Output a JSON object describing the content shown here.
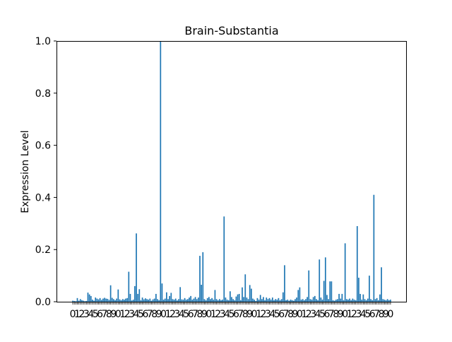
{
  "chart_data": {
    "type": "bar",
    "title": "Brain-Substantia",
    "xlabel": "",
    "ylabel": "Expression Level",
    "ylim": [
      0,
      1.0
    ],
    "yticks": [
      "0.0",
      "0.2",
      "0.4",
      "0.6",
      "0.8",
      "1.0"
    ],
    "grid": false,
    "legend": "none",
    "bar_color": "#1f77b4",
    "x_tick_labels_overlapping": "0123456789",
    "values": [
      0.004,
      0.003,
      0.002,
      0.014,
      0.004,
      0.01,
      0.006,
      0.004,
      0.002,
      0.003,
      0.035,
      0.028,
      0.022,
      0.008,
      0.004,
      0.016,
      0.012,
      0.009,
      0.014,
      0.007,
      0.012,
      0.015,
      0.012,
      0.011,
      0.007,
      0.063,
      0.015,
      0.01,
      0.006,
      0.012,
      0.047,
      0.009,
      0.006,
      0.01,
      0.008,
      0.012,
      0.014,
      0.115,
      0.03,
      0.005,
      0.008,
      0.06,
      0.262,
      0.03,
      0.048,
      0.006,
      0.016,
      0.009,
      0.013,
      0.01,
      0.008,
      0.012,
      0.004,
      0.009,
      0.012,
      0.03,
      0.01,
      0.006,
      1.0,
      0.07,
      0.008,
      0.012,
      0.036,
      0.01,
      0.022,
      0.034,
      0.01,
      0.008,
      0.012,
      0.005,
      0.01,
      0.056,
      0.009,
      0.008,
      0.014,
      0.008,
      0.01,
      0.016,
      0.022,
      0.008,
      0.012,
      0.018,
      0.01,
      0.016,
      0.176,
      0.065,
      0.19,
      0.01,
      0.006,
      0.014,
      0.018,
      0.01,
      0.014,
      0.008,
      0.045,
      0.01,
      0.006,
      0.01,
      0.006,
      0.008,
      0.327,
      0.016,
      0.008,
      0.006,
      0.04,
      0.018,
      0.01,
      0.006,
      0.02,
      0.028,
      0.03,
      0.006,
      0.055,
      0.018,
      0.105,
      0.016,
      0.01,
      0.064,
      0.05,
      0.012,
      0.008,
      0.003,
      0.014,
      0.008,
      0.026,
      0.01,
      0.018,
      0.006,
      0.016,
      0.01,
      0.014,
      0.008,
      0.016,
      0.006,
      0.01,
      0.008,
      0.014,
      0.006,
      0.01,
      0.036,
      0.14,
      0.006,
      0.008,
      0.004,
      0.008,
      0.006,
      0.004,
      0.01,
      0.016,
      0.045,
      0.055,
      0.008,
      0.01,
      0.006,
      0.01,
      0.018,
      0.12,
      0.01,
      0.008,
      0.018,
      0.022,
      0.01,
      0.006,
      0.162,
      0.016,
      0.008,
      0.08,
      0.17,
      0.026,
      0.01,
      0.078,
      0.078,
      0.006,
      0.004,
      0.008,
      0.01,
      0.03,
      0.012,
      0.03,
      0.006,
      0.224,
      0.01,
      0.008,
      0.012,
      0.006,
      0.012,
      0.008,
      0.006,
      0.29,
      0.092,
      0.03,
      0.008,
      0.028,
      0.01,
      0.006,
      0.012,
      0.1,
      0.01,
      0.006,
      0.41,
      0.01,
      0.014,
      0.006,
      0.028,
      0.132,
      0.01,
      0.008,
      0.006,
      0.01,
      0.006,
      0.008
    ]
  }
}
